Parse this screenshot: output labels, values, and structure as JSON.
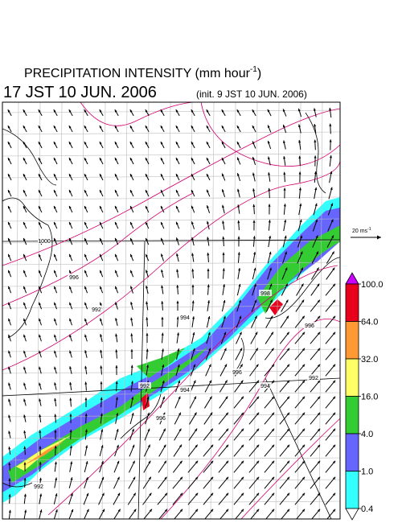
{
  "header": {
    "title": "PRECIPITATION INTENSITY (mm hour",
    "title_exponent": "-1",
    "title_close": ")",
    "valid_time": "17 JST 10 JUN. 2006",
    "init_time": "(init. 9 JST 10 JUN. 2006)"
  },
  "wind_scale": {
    "label": "20 ms",
    "exponent": "-1"
  },
  "map": {
    "contour_labels": [
      "996",
      "992",
      "1000",
      "994",
      "996",
      "992",
      "998",
      "996",
      "994",
      "992",
      "996",
      "994",
      "992"
    ],
    "contour_color": "#d4006e"
  },
  "colorbar": {
    "levels": [
      {
        "value": 100,
        "label": "100.0"
      },
      {
        "value": 64,
        "label": "64.0"
      },
      {
        "value": 32,
        "label": "32.0"
      },
      {
        "value": 16,
        "label": "16.0"
      },
      {
        "value": 4,
        "label": "4.0"
      },
      {
        "value": 1,
        "label": "1.0"
      },
      {
        "value": 0.4,
        "label": "0.4"
      }
    ],
    "colors": [
      "#e8001c",
      "#ff9933",
      "#ffff66",
      "#33cc33",
      "#6666ff",
      "#33ffff"
    ],
    "over_color": "#cc00ff",
    "under_color": "#ffffff"
  }
}
